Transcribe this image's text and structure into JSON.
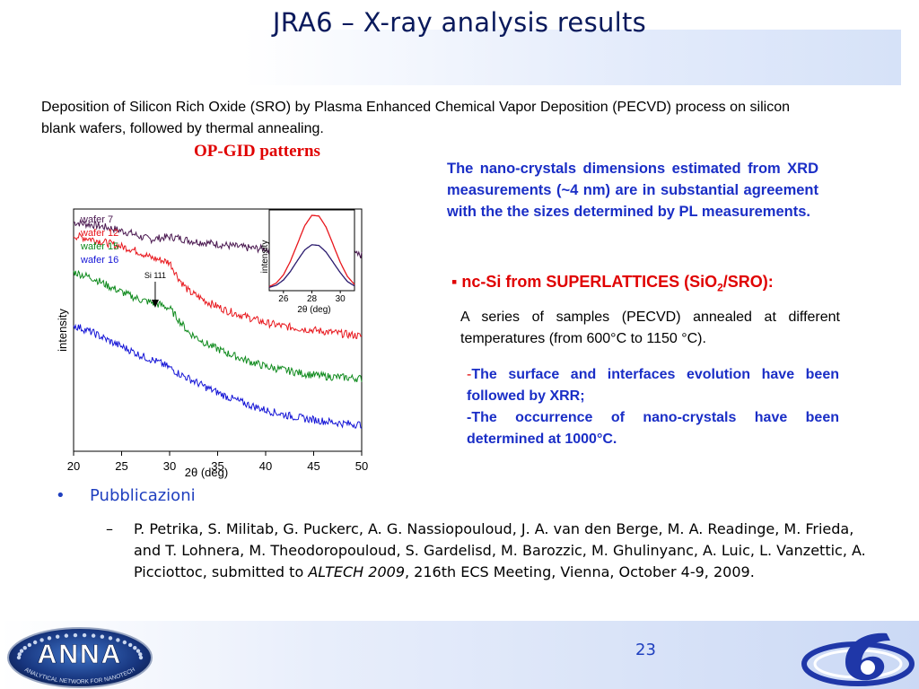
{
  "slide": {
    "title": "JRA6 – X-ray analysis results",
    "intro": "Deposition of Silicon Rich Oxide (SRO) by Plasma Enhanced Chemical Vapor Deposition (PECVD) process on silicon blank wafers, followed by thermal annealing.",
    "figure_title": "OP-GID patterns",
    "right_text_1": "The nano-crystals dimensions estimated from XRD measurements (~4 nm) are in substantial  agreement with the the sizes determined by PL measurements.",
    "nc_heading": {
      "bullet": "▪",
      "pre": "nc-Si from SUPERLATTICES (SiO",
      "sub": "2",
      "post": "/SRO):"
    },
    "right_text_2": "A series of  samples (PECVD) annealed at different temperatures (from 600°C to 1150 °C).",
    "right_text_3": {
      "dash1": "-",
      "line1": "The surface and interfaces evolution have been followed by XRR;",
      "line2": "-The occurrence of nano-crystals have been determined at 1000°C."
    },
    "pubs_bullet": "•",
    "pubs_heading": "Pubblicazioni",
    "reference": {
      "dash": "–",
      "pre": "P. Petrika, S. Militab, G. Puckerc, A. G. Nassiopouloud, J. A. van den Berge, M. A. Readinge, M. Frieda, and T. Lohnera, M. Theodoropouloud, S. Gardelisd, M. Barozzic, M. Ghulinyanc, A. Luic, L. Vanzettic, A. Picciottoc, submitted to ",
      "italic": "ALTECH 2009",
      "post": ", 216th ECS Meeting, Vienna, October 4-9, 2009."
    },
    "page_number": "23",
    "logo_text": "ANNA",
    "logo_subtext": "ANALYTICAL NETWORK FOR NANOTECH"
  },
  "chart_data": [
    {
      "type": "line",
      "xlabel": "2θ (deg)",
      "ylabel": "intensity",
      "xlim": [
        20,
        50
      ],
      "xticks": [
        20,
        25,
        30,
        35,
        40,
        45,
        50
      ],
      "yticks": "none",
      "grid": false,
      "legend": "top-left",
      "annotation": {
        "label": "Si 111",
        "x": 28.5
      },
      "colors": {
        "wafer 7": "#4a1850",
        "wafer 12": "#e8161c",
        "wafer 15": "#0e8a1c",
        "wafer 16": "#1515d6"
      },
      "x": [
        20,
        22,
        24,
        26,
        27,
        28,
        29,
        30,
        31,
        32,
        34,
        36,
        38,
        40,
        42,
        44,
        46,
        48,
        50
      ],
      "series": [
        {
          "name": "wafer 7",
          "values": [
            9.45,
            9.35,
            9.2,
            9.0,
            8.85,
            8.75,
            8.8,
            8.85,
            8.8,
            8.7,
            8.6,
            8.5,
            8.4,
            8.35,
            8.3,
            8.25,
            8.2,
            8.15,
            8.1
          ]
        },
        {
          "name": "wafer 12",
          "values": [
            8.9,
            8.75,
            8.55,
            8.35,
            8.2,
            8.0,
            7.9,
            7.8,
            7.1,
            6.6,
            6.15,
            5.8,
            5.55,
            5.3,
            5.15,
            5.05,
            4.95,
            4.85,
            4.75
          ]
        },
        {
          "name": "wafer 15",
          "values": [
            7.4,
            7.15,
            6.75,
            6.4,
            6.25,
            6.15,
            6.05,
            5.9,
            5.4,
            4.9,
            4.4,
            4.05,
            3.75,
            3.5,
            3.35,
            3.2,
            3.1,
            3.05,
            3.0
          ]
        },
        {
          "name": "wafer 16",
          "values": [
            5.2,
            4.9,
            4.5,
            4.15,
            3.95,
            3.8,
            3.65,
            3.45,
            3.2,
            3.0,
            2.6,
            2.25,
            1.95,
            1.7,
            1.5,
            1.35,
            1.25,
            1.15,
            1.1
          ]
        }
      ]
    },
    {
      "type": "line",
      "xlabel": "2θ (deg)",
      "ylabel": "intensity",
      "xlim": [
        25,
        31
      ],
      "xticks": [
        26,
        28,
        30
      ],
      "x": [
        25,
        25.5,
        26,
        26.5,
        27,
        27.5,
        28,
        28.5,
        29,
        29.5,
        30,
        30.5,
        31
      ],
      "series": [
        {
          "color": "#e8161c",
          "values": [
            0.03,
            0.08,
            0.19,
            0.38,
            0.62,
            0.86,
            1.0,
            0.99,
            0.84,
            0.6,
            0.36,
            0.17,
            0.06
          ]
        },
        {
          "color": "#2a1a6e",
          "values": [
            0.02,
            0.05,
            0.12,
            0.24,
            0.39,
            0.53,
            0.6,
            0.59,
            0.5,
            0.36,
            0.22,
            0.1,
            0.04
          ]
        }
      ]
    }
  ]
}
